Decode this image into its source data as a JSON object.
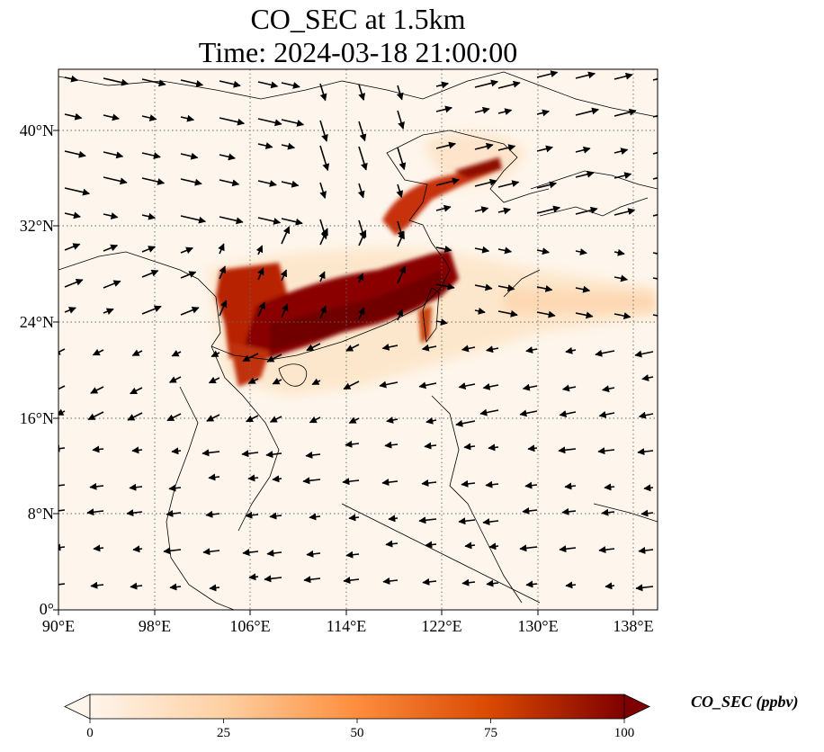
{
  "title_line1": "CO_SEC at 1.5km",
  "title_line2": "Time: 2024-03-18 21:00:00",
  "map": {
    "lon_range": [
      90,
      140
    ],
    "lat_range": [
      0,
      44
    ],
    "lon_ticks": [
      "90°E",
      "98°E",
      "106°E",
      "114°E",
      "122°E",
      "130°E",
      "138°E"
    ],
    "lat_ticks": [
      "0°",
      "8°N",
      "16°N",
      "24°N",
      "32°N",
      "40°N"
    ],
    "gridlines": true,
    "field": "CO_SEC",
    "vectors": "wind arrows"
  },
  "colorbar": {
    "label": "CO_SEC (ppbv)",
    "ticks": [
      "0",
      "25",
      "50",
      "75",
      "100"
    ],
    "range": [
      0,
      100
    ],
    "colormap": [
      "#fff5eb",
      "#fdd0a2",
      "#fd8d3c",
      "#d94801",
      "#7f0000"
    ],
    "extend": "both"
  }
}
